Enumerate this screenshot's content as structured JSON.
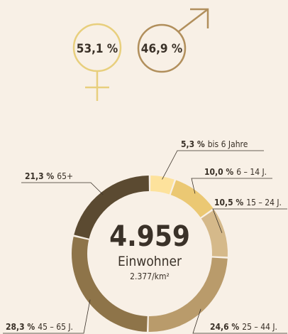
{
  "gender": {
    "labels": [
      "53,1 %",
      "46,9 %"
    ]
  },
  "chart_data": {
    "type": "pie",
    "categories": [
      "bis 6 Jahre",
      "6 – 14 J.",
      "15 – 24 J.",
      "25 – 44 J.",
      "45 – 65 J.",
      "65+"
    ],
    "values": [
      5.3,
      10.0,
      10.5,
      24.6,
      28.3,
      21.3
    ],
    "value_labels": [
      "5,3 %",
      "10,0 %",
      "10,5 %",
      "24,6 %",
      "28,3 %",
      "21,3 %"
    ],
    "colors": [
      "#fde29c",
      "#ebc873",
      "#d5b98a",
      "#b99b6b",
      "#8e7449",
      "#5b4a31"
    ],
    "center_value": "4.959",
    "center_label": "Einwohner",
    "center_sub": "2.377/km²"
  }
}
